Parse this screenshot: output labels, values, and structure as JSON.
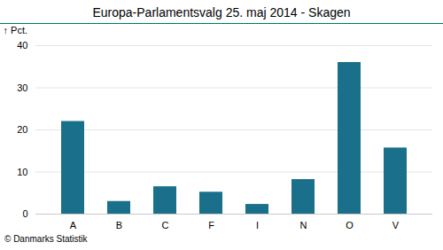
{
  "chart_data": {
    "type": "bar",
    "title": "Europa-Parlamentsvalg 25. maj 2014 - Skagen",
    "categories": [
      "A",
      "B",
      "C",
      "F",
      "I",
      "N",
      "O",
      "V"
    ],
    "values": [
      22.0,
      3.0,
      6.5,
      5.2,
      2.3,
      8.2,
      36.0,
      15.7
    ],
    "color": "#1a6f8a",
    "ylabel": "Pct.",
    "ylim": [
      0,
      40
    ],
    "yticks": [
      0,
      10,
      20,
      30,
      40
    ],
    "grid": true,
    "footer": "© Danmarks Statistik"
  }
}
